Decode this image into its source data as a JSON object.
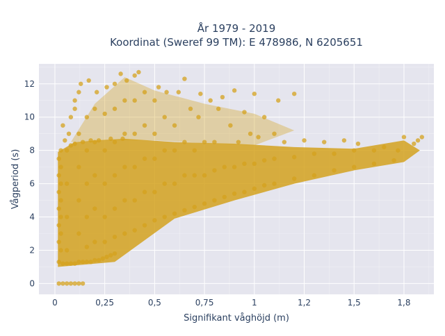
{
  "chart_data": {
    "type": "scatter",
    "title_lines": [
      "År 1979 - 2019",
      "Koordinat (Sweref 99 TM): E 478986, N 6205651"
    ],
    "xlabel": "Signifikant våghöjd (m)",
    "ylabel": "Vågperiod (s)",
    "xlim": [
      -0.08,
      1.9
    ],
    "ylim": [
      -0.65,
      13.2
    ],
    "x_ticks": [
      0,
      0.25,
      0.5,
      0.75,
      1,
      1.25,
      1.5,
      1.75
    ],
    "x_tick_labels": [
      "0",
      "0,25",
      "0,5",
      "0,75",
      "1",
      "1,2",
      "1,5",
      "1,8"
    ],
    "y_ticks": [
      0,
      2,
      4,
      6,
      8,
      10,
      12
    ],
    "y_tick_labels": [
      "0",
      "2",
      "4",
      "6",
      "8",
      "10",
      "12"
    ],
    "grid": true,
    "marker_color": "#d4a21e",
    "plot_background": "#e5e5ee",
    "series": [
      {
        "points": [
          [
            0.02,
            0.0
          ],
          [
            0.04,
            0.0
          ],
          [
            0.06,
            0.0
          ],
          [
            0.08,
            0.0
          ],
          [
            0.1,
            0.0
          ],
          [
            0.12,
            0.0
          ],
          [
            0.14,
            0.0
          ],
          [
            0.02,
            1.3
          ],
          [
            0.04,
            1.2
          ],
          [
            0.06,
            1.2
          ],
          [
            0.08,
            1.2
          ],
          [
            0.1,
            1.2
          ],
          [
            0.12,
            1.3
          ],
          [
            0.14,
            1.3
          ],
          [
            0.16,
            1.3
          ],
          [
            0.18,
            1.3
          ],
          [
            0.2,
            1.4
          ],
          [
            0.22,
            1.4
          ],
          [
            0.24,
            1.5
          ],
          [
            0.26,
            1.6
          ],
          [
            0.28,
            1.7
          ],
          [
            0.3,
            1.8
          ],
          [
            0.02,
            2.5
          ],
          [
            0.02,
            3.5
          ],
          [
            0.02,
            4.5
          ],
          [
            0.02,
            5.5
          ],
          [
            0.02,
            6.5
          ],
          [
            0.02,
            7.5
          ],
          [
            0.03,
            8.0
          ],
          [
            0.04,
            9.5
          ],
          [
            0.05,
            8.6
          ],
          [
            0.03,
            2.0
          ],
          [
            0.03,
            3.0
          ],
          [
            0.03,
            4.0
          ],
          [
            0.03,
            5.0
          ],
          [
            0.03,
            6.0
          ],
          [
            0.03,
            7.0
          ],
          [
            0.06,
            2.0
          ],
          [
            0.06,
            4.0
          ],
          [
            0.06,
            6.0
          ],
          [
            0.06,
            8.0
          ],
          [
            0.07,
            9.0
          ],
          [
            0.08,
            10.0
          ],
          [
            0.1,
            10.5
          ],
          [
            0.1,
            11.0
          ],
          [
            0.12,
            3.0
          ],
          [
            0.12,
            5.0
          ],
          [
            0.12,
            7.0
          ],
          [
            0.12,
            9.0
          ],
          [
            0.12,
            11.5
          ],
          [
            0.13,
            12.0
          ],
          [
            0.16,
            2.2
          ],
          [
            0.16,
            4.0
          ],
          [
            0.16,
            6.0
          ],
          [
            0.16,
            8.0
          ],
          [
            0.16,
            10.0
          ],
          [
            0.17,
            12.2
          ],
          [
            0.2,
            2.5
          ],
          [
            0.2,
            4.5
          ],
          [
            0.2,
            6.5
          ],
          [
            0.2,
            8.5
          ],
          [
            0.2,
            10.5
          ],
          [
            0.21,
            11.5
          ],
          [
            0.25,
            2.5
          ],
          [
            0.25,
            4.0
          ],
          [
            0.25,
            6.0
          ],
          [
            0.25,
            8.0
          ],
          [
            0.25,
            10.2
          ],
          [
            0.26,
            11.8
          ],
          [
            0.3,
            2.8
          ],
          [
            0.3,
            4.5
          ],
          [
            0.3,
            6.5
          ],
          [
            0.3,
            8.5
          ],
          [
            0.3,
            10.5
          ],
          [
            0.3,
            12.0
          ],
          [
            0.33,
            12.6
          ],
          [
            0.35,
            3.0
          ],
          [
            0.35,
            5.0
          ],
          [
            0.35,
            7.0
          ],
          [
            0.35,
            9.0
          ],
          [
            0.35,
            11.0
          ],
          [
            0.36,
            12.2
          ],
          [
            0.4,
            3.2
          ],
          [
            0.4,
            5.0
          ],
          [
            0.4,
            7.0
          ],
          [
            0.4,
            9.0
          ],
          [
            0.4,
            11.0
          ],
          [
            0.4,
            12.5
          ],
          [
            0.42,
            12.7
          ],
          [
            0.45,
            3.5
          ],
          [
            0.45,
            5.5
          ],
          [
            0.45,
            7.5
          ],
          [
            0.45,
            9.5
          ],
          [
            0.45,
            11.5
          ],
          [
            0.5,
            3.8
          ],
          [
            0.5,
            5.5
          ],
          [
            0.5,
            7.5
          ],
          [
            0.5,
            9.0
          ],
          [
            0.5,
            11.0
          ],
          [
            0.52,
            11.8
          ],
          [
            0.55,
            4.0
          ],
          [
            0.55,
            6.0
          ],
          [
            0.55,
            8.0
          ],
          [
            0.55,
            10.0
          ],
          [
            0.56,
            11.5
          ],
          [
            0.6,
            4.2
          ],
          [
            0.6,
            6.0
          ],
          [
            0.6,
            8.0
          ],
          [
            0.6,
            9.5
          ],
          [
            0.62,
            11.5
          ],
          [
            0.65,
            12.3
          ],
          [
            0.65,
            4.4
          ],
          [
            0.65,
            6.5
          ],
          [
            0.65,
            8.5
          ],
          [
            0.68,
            10.5
          ],
          [
            0.7,
            4.6
          ],
          [
            0.7,
            6.5
          ],
          [
            0.7,
            8.0
          ],
          [
            0.72,
            10.0
          ],
          [
            0.73,
            11.4
          ],
          [
            0.75,
            4.8
          ],
          [
            0.75,
            6.5
          ],
          [
            0.75,
            8.5
          ],
          [
            0.78,
            11.0
          ],
          [
            0.8,
            5.0
          ],
          [
            0.8,
            6.8
          ],
          [
            0.8,
            8.5
          ],
          [
            0.82,
            10.5
          ],
          [
            0.84,
            11.2
          ],
          [
            0.85,
            5.2
          ],
          [
            0.85,
            7.0
          ],
          [
            0.88,
            9.5
          ],
          [
            0.9,
            11.6
          ],
          [
            0.9,
            5.4
          ],
          [
            0.9,
            7.0
          ],
          [
            0.92,
            8.5
          ],
          [
            0.95,
            10.3
          ],
          [
            0.95,
            5.5
          ],
          [
            0.95,
            7.2
          ],
          [
            0.98,
            9.0
          ],
          [
            1.0,
            11.4
          ],
          [
            1.0,
            5.7
          ],
          [
            1.0,
            7.2
          ],
          [
            1.02,
            8.8
          ],
          [
            1.05,
            10.0
          ],
          [
            1.05,
            5.9
          ],
          [
            1.05,
            7.4
          ],
          [
            1.1,
            9.0
          ],
          [
            1.12,
            11.0
          ],
          [
            1.1,
            6.0
          ],
          [
            1.1,
            7.5
          ],
          [
            1.15,
            8.5
          ],
          [
            1.2,
            11.4
          ],
          [
            1.2,
            6.3
          ],
          [
            1.2,
            7.6
          ],
          [
            1.25,
            8.6
          ],
          [
            1.3,
            6.5
          ],
          [
            1.3,
            7.8
          ],
          [
            1.35,
            8.5
          ],
          [
            1.4,
            6.8
          ],
          [
            1.4,
            7.8
          ],
          [
            1.45,
            8.6
          ],
          [
            1.5,
            7.0
          ],
          [
            1.5,
            8.0
          ],
          [
            1.52,
            8.4
          ],
          [
            1.6,
            7.2
          ],
          [
            1.6,
            8.0
          ],
          [
            1.65,
            8.2
          ],
          [
            1.7,
            7.4
          ],
          [
            1.72,
            8.0
          ],
          [
            1.75,
            8.8
          ],
          [
            1.8,
            8.4
          ],
          [
            1.82,
            8.6
          ],
          [
            1.84,
            8.8
          ],
          [
            0.08,
            8.3
          ],
          [
            0.1,
            8.4
          ],
          [
            0.14,
            8.5
          ],
          [
            0.18,
            8.6
          ],
          [
            0.22,
            8.6
          ],
          [
            0.28,
            8.7
          ],
          [
            0.34,
            8.7
          ]
        ]
      }
    ]
  }
}
